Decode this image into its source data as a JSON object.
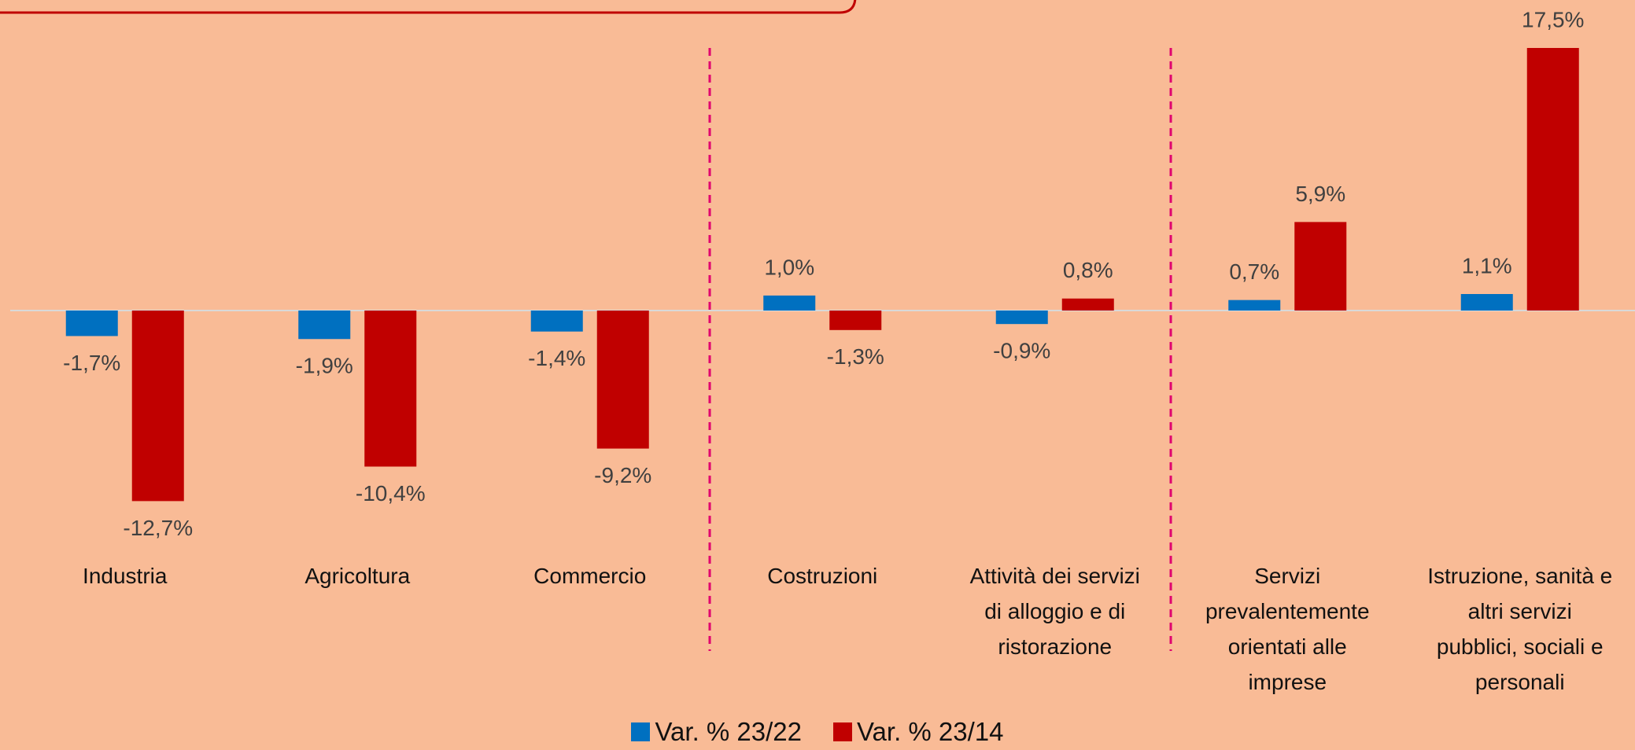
{
  "chart_data": {
    "type": "bar",
    "categories": [
      "Industria",
      "Agricoltura",
      "Commercio",
      "Costruzioni",
      "Attività dei servizi\ndi alloggio e di\nristorazione",
      "Servizi\nprevalentemente\norientati alle\nimprese",
      "Istruzione, sanità e\naltri servizi\npubblici, sociali e\npersonali"
    ],
    "series": [
      {
        "name": "Var. % 23/22",
        "color": "#0070c0",
        "values": [
          -1.7,
          -1.9,
          -1.4,
          1.0,
          -0.9,
          0.7,
          1.1
        ],
        "value_labels": [
          "-1,7%",
          "-1,9%",
          "-1,4%",
          "1,0%",
          "-0,9%",
          "0,7%",
          "1,1%"
        ]
      },
      {
        "name": "Var. % 23/14",
        "color": "#c00000",
        "values": [
          -12.7,
          -10.4,
          -9.2,
          -1.3,
          0.8,
          5.9,
          17.5
        ],
        "value_labels": [
          "-12,7%",
          "-10,4%",
          "-9,2%",
          "-1,3%",
          "0,8%",
          "5,9%",
          "17,5%"
        ]
      }
    ],
    "legend": "bottom"
  }
}
